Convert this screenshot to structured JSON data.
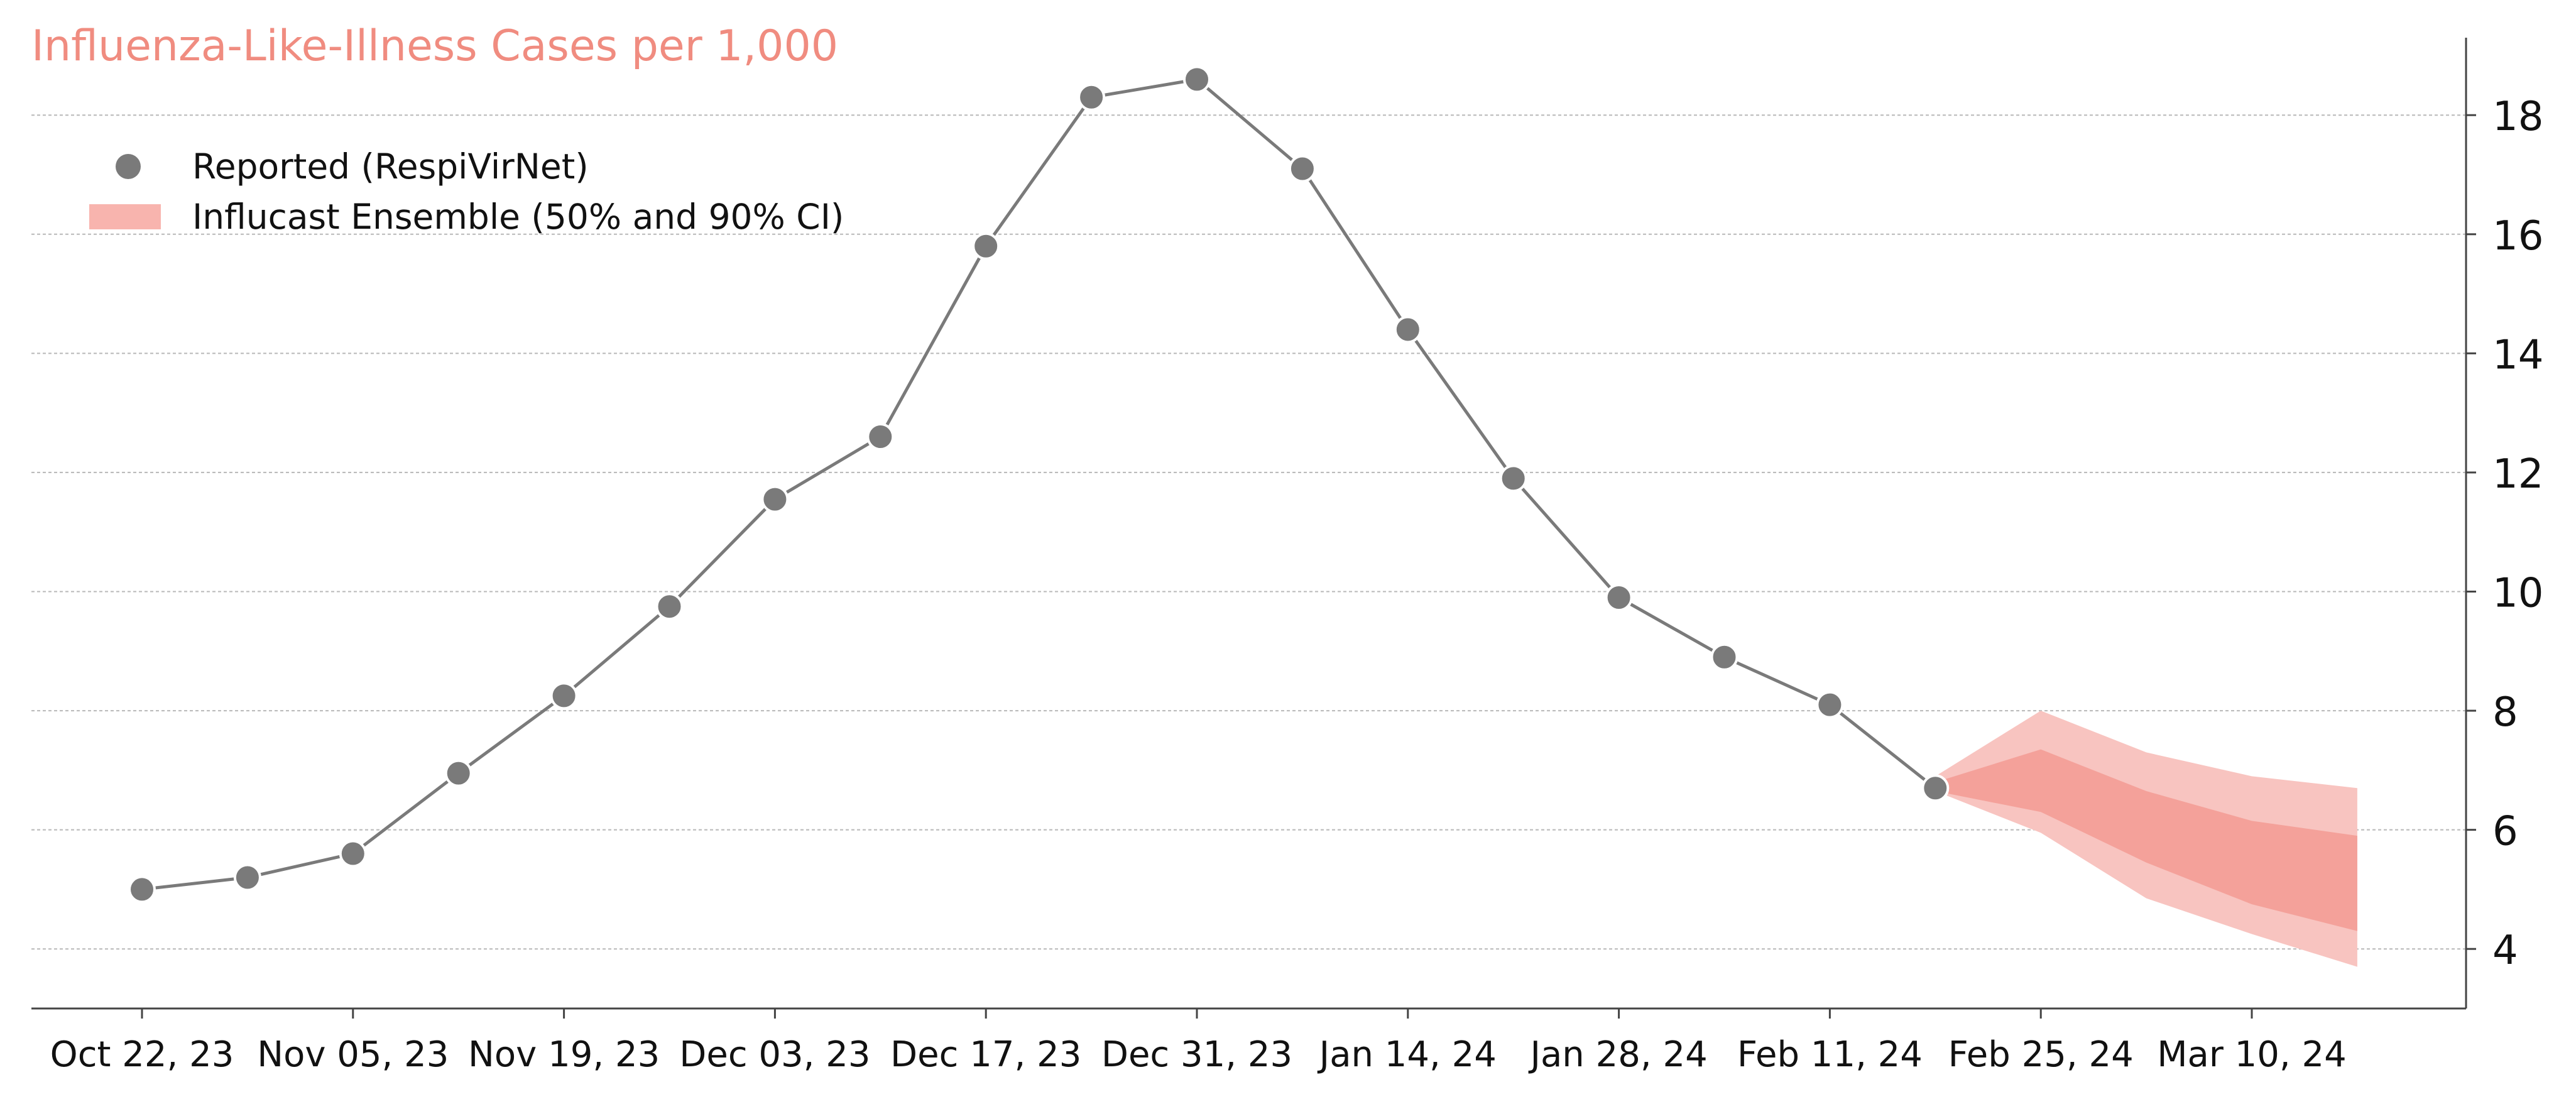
{
  "chart_data": {
    "type": "line",
    "title": "Influenza-Like-Illness Cases per 1,000",
    "xlabel": "",
    "ylabel": "",
    "ylim": [
      3.0,
      19.3
    ],
    "y_ticks": [
      4,
      6,
      8,
      10,
      12,
      14,
      16,
      18
    ],
    "y_axis_side": "right",
    "grid": "horizontal dashed",
    "x_tick_labels": [
      "Oct 22, 23",
      "Nov 05, 23",
      "Nov 19, 23",
      "Dec 03, 23",
      "Dec 17, 23",
      "Dec 31, 23",
      "Jan 14, 24",
      "Jan 28, 24",
      "Feb 11, 24",
      "Feb 25, 24",
      "Mar 10, 24"
    ],
    "legend_position": "top-left",
    "series": [
      {
        "name": "Reported (RespiVirNet)",
        "kind": "line+markers",
        "color": "#7a7a7a",
        "points": [
          {
            "x": "2023-10-22",
            "y": 5.0
          },
          {
            "x": "2023-10-29",
            "y": 5.2
          },
          {
            "x": "2023-11-05",
            "y": 5.6
          },
          {
            "x": "2023-11-12",
            "y": 6.95
          },
          {
            "x": "2023-11-19",
            "y": 8.25
          },
          {
            "x": "2023-11-26",
            "y": 9.75
          },
          {
            "x": "2023-12-03",
            "y": 11.55
          },
          {
            "x": "2023-12-10",
            "y": 12.6
          },
          {
            "x": "2023-12-17",
            "y": 15.8
          },
          {
            "x": "2023-12-24",
            "y": 18.3
          },
          {
            "x": "2023-12-31",
            "y": 18.6
          },
          {
            "x": "2024-01-07",
            "y": 17.1
          },
          {
            "x": "2024-01-14",
            "y": 14.4
          },
          {
            "x": "2024-01-21",
            "y": 11.9
          },
          {
            "x": "2024-01-28",
            "y": 9.9
          },
          {
            "x": "2024-02-04",
            "y": 8.9
          },
          {
            "x": "2024-02-11",
            "y": 8.1
          },
          {
            "x": "2024-02-18",
            "y": 6.7
          }
        ]
      },
      {
        "name": "Influcast Ensemble (50% and 90% CI)",
        "kind": "band",
        "color_outer": "#f8c4c0",
        "color_inner": "#f4a19a",
        "points": [
          {
            "x": "2024-02-18",
            "lo90": 6.65,
            "lo50": 6.65,
            "hi50": 6.8,
            "hi90": 6.9
          },
          {
            "x": "2024-02-25",
            "lo90": 5.95,
            "lo50": 6.3,
            "hi50": 7.35,
            "hi90": 8.0
          },
          {
            "x": "2024-03-03",
            "lo90": 4.85,
            "lo50": 5.45,
            "hi50": 6.65,
            "hi90": 7.3
          },
          {
            "x": "2024-03-10",
            "lo90": 4.25,
            "lo50": 4.75,
            "hi50": 6.15,
            "hi90": 6.9
          },
          {
            "x": "2024-03-17",
            "lo90": 3.7,
            "lo50": 4.3,
            "hi50": 5.9,
            "hi90": 6.7
          }
        ]
      }
    ]
  }
}
